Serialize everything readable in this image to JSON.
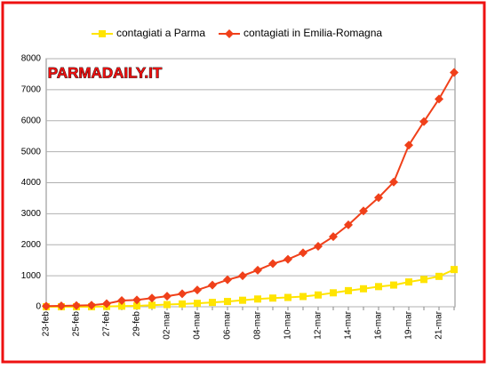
{
  "chart_data": {
    "type": "line",
    "watermark": "PARMADAILY.IT",
    "categories": [
      "23-feb",
      null,
      "25-feb",
      null,
      "27-feb",
      null,
      "29-feb",
      null,
      "02-mar",
      null,
      "04-mar",
      null,
      "06-mar",
      null,
      "08-mar",
      null,
      "10-mar",
      null,
      "12-mar",
      null,
      "14-mar",
      null,
      "16-mar",
      null,
      "19-mar",
      null,
      "21-mar",
      null
    ],
    "series": [
      {
        "name": "contagiati a Parma",
        "color": "#ffe400",
        "marker": "square",
        "values": [
          0,
          0,
          0,
          0,
          10,
          20,
          30,
          50,
          70,
          90,
          110,
          140,
          170,
          210,
          250,
          280,
          300,
          330,
          380,
          450,
          520,
          580,
          650,
          700,
          800,
          880,
          980,
          1200
        ]
      },
      {
        "name": "contagiati in Emilia-Romagna",
        "color": "#f0401a",
        "marker": "diamond",
        "values": [
          20,
          30,
          40,
          50,
          100,
          200,
          220,
          280,
          340,
          420,
          540,
          700,
          870,
          1000,
          1180,
          1390,
          1530,
          1740,
          1950,
          2260,
          2640,
          3090,
          3520,
          4020,
          5210,
          5970,
          6700,
          7555
        ]
      }
    ],
    "ylim": [
      0,
      8000
    ],
    "yticks": [
      0,
      1000,
      2000,
      3000,
      4000,
      5000,
      6000,
      7000,
      8000
    ],
    "grid": true,
    "legend": "top"
  }
}
